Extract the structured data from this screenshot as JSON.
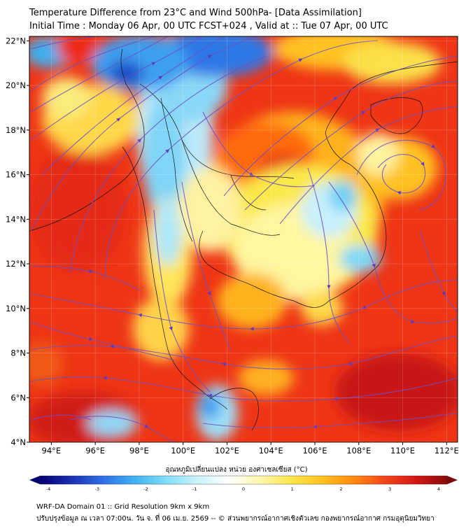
{
  "header": {
    "title": "Temperature Difference from 23°C and Wind 500hPa- [Data Assimilation]",
    "subtitle": "Initial Time : Monday 06 Apr, 00 UTC FCST+024 , Valid at ::  Tue 07 Apr, 00 UTC"
  },
  "map": {
    "lat_ticks": [
      "4°N",
      "6°N",
      "8°N",
      "10°N",
      "12°N",
      "14°N",
      "16°N",
      "18°N",
      "20°N",
      "22°N"
    ],
    "lon_ticks": [
      "94°E",
      "96°E",
      "98°E",
      "100°E",
      "102°E",
      "104°E",
      "106°E",
      "108°E",
      "110°E",
      "112°E"
    ],
    "extent": {
      "lon_min": 93,
      "lon_max": 112.5,
      "lat_min": 4,
      "lat_max": 22.2
    },
    "field_colors": [
      "#1a3fb0",
      "#2f7de8",
      "#46c8f5",
      "#b6ecfa",
      "#ffffd9",
      "#fbe84a",
      "#ffb21f",
      "#ff6a0f",
      "#f5291a",
      "#d31616",
      "#a30d0d"
    ],
    "streamline_color": "#6a4fc4"
  },
  "colorbar": {
    "title": "อุณหภูมิเปลี่ยนแปลง หน่วย องศาเซลเซียส (°C)",
    "ticks": [
      "-4",
      "-3",
      "-2",
      "-1",
      "0",
      "1",
      "2",
      "3",
      "4"
    ],
    "colors": [
      "#02006e",
      "#1a2fb0",
      "#2f6ee8",
      "#3fb0f0",
      "#7fdcf8",
      "#c8f2fb",
      "#ffffff",
      "#fff7b0",
      "#fbe84a",
      "#ffc21f",
      "#ff8a0f",
      "#f5461a",
      "#d31616",
      "#8a0a0a"
    ]
  },
  "footer": {
    "line1": "WRF-DA Domain 01 :: Grid Resolution 9km x 9km",
    "line2": "ปรับปรุงข้อมูล ณ เวลา 07:00น. วัน จ. ที่ 06 เม.ย. 2569 -- © ส่วนพยากรณ์อากาศเชิงตัวเลข กองพยากรณ์อากาศ กรมอุตุนิยมวิทยา"
  }
}
